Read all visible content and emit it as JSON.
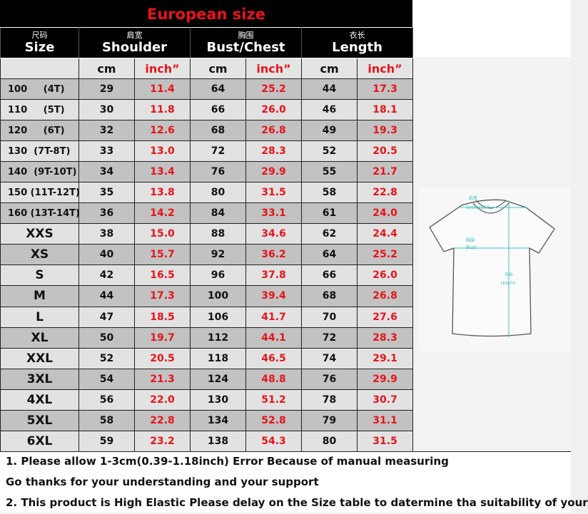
{
  "title": "European size",
  "headers": [
    {
      "cn": "尺码",
      "en": "Size"
    },
    {
      "cn": "肩宽",
      "en": "Shoulder"
    },
    {
      "cn": "胸围",
      "en": "Bust/Chest"
    },
    {
      "cn": "衣长",
      "en": "Length"
    }
  ],
  "units": {
    "cm": "cm",
    "inch": "inch”"
  },
  "rows": [
    {
      "size": "100     (4T)",
      "s_cm": "29",
      "s_in": "11.4",
      "b_cm": "64",
      "b_in": "25.2",
      "l_cm": "44",
      "l_in": "17.3"
    },
    {
      "size": "110     (5T)",
      "s_cm": "30",
      "s_in": "11.8",
      "b_cm": "66",
      "b_in": "26.0",
      "l_cm": "46",
      "l_in": "18.1"
    },
    {
      "size": "120     (6T)",
      "s_cm": "32",
      "s_in": "12.6",
      "b_cm": "68",
      "b_in": "26.8",
      "l_cm": "49",
      "l_in": "19.3"
    },
    {
      "size": "130  (7T-8T)",
      "s_cm": "33",
      "s_in": "13.0",
      "b_cm": "72",
      "b_in": "28.3",
      "l_cm": "52",
      "l_in": "20.5"
    },
    {
      "size": "140  (9T-10T)",
      "s_cm": "34",
      "s_in": "13.4",
      "b_cm": "76",
      "b_in": "29.9",
      "l_cm": "55",
      "l_in": "21.7"
    },
    {
      "size": "150 (11T-12T)",
      "s_cm": "35",
      "s_in": "13.8",
      "b_cm": "80",
      "b_in": "31.5",
      "l_cm": "58",
      "l_in": "22.8"
    },
    {
      "size": "160 (13T-14T)",
      "s_cm": "36",
      "s_in": "14.2",
      "b_cm": "84",
      "b_in": "33.1",
      "l_cm": "61",
      "l_in": "24.0"
    },
    {
      "size": "XXS",
      "s_cm": "38",
      "s_in": "15.0",
      "b_cm": "88",
      "b_in": "34.6",
      "l_cm": "62",
      "l_in": "24.4"
    },
    {
      "size": "XS",
      "s_cm": "40",
      "s_in": "15.7",
      "b_cm": "92",
      "b_in": "36.2",
      "l_cm": "64",
      "l_in": "25.2"
    },
    {
      "size": "S",
      "s_cm": "42",
      "s_in": "16.5",
      "b_cm": "96",
      "b_in": "37.8",
      "l_cm": "66",
      "l_in": "26.0"
    },
    {
      "size": "M",
      "s_cm": "44",
      "s_in": "17.3",
      "b_cm": "100",
      "b_in": "39.4",
      "l_cm": "68",
      "l_in": "26.8"
    },
    {
      "size": "L",
      "s_cm": "47",
      "s_in": "18.5",
      "b_cm": "106",
      "b_in": "41.7",
      "l_cm": "70",
      "l_in": "27.6"
    },
    {
      "size": "XL",
      "s_cm": "50",
      "s_in": "19.7",
      "b_cm": "112",
      "b_in": "44.1",
      "l_cm": "72",
      "l_in": "28.3"
    },
    {
      "size": "XXL",
      "s_cm": "52",
      "s_in": "20.5",
      "b_cm": "118",
      "b_in": "46.5",
      "l_cm": "74",
      "l_in": "29.1"
    },
    {
      "size": "3XL",
      "s_cm": "54",
      "s_in": "21.3",
      "b_cm": "124",
      "b_in": "48.8",
      "l_cm": "76",
      "l_in": "29.9"
    },
    {
      "size": "4XL",
      "s_cm": "56",
      "s_in": "22.0",
      "b_cm": "130",
      "b_in": "51.2",
      "l_cm": "78",
      "l_in": "30.7"
    },
    {
      "size": "5XL",
      "s_cm": "58",
      "s_in": "22.8",
      "b_cm": "134",
      "b_in": "52.8",
      "l_cm": "79",
      "l_in": "31.1"
    },
    {
      "size": "6XL",
      "s_cm": "59",
      "s_in": "23.2",
      "b_cm": "138",
      "b_in": "54.3",
      "l_cm": "80",
      "l_in": "31.5"
    }
  ],
  "diagram": {
    "shoulder_cn": "肩宽",
    "shoulder": "SHOULDER",
    "bust_cn": "胸围",
    "bust": "Bust",
    "length_cn": "衣长",
    "length": "LENGTH"
  },
  "notes": [
    "1. Please allow 1-3cm(0.39-1.18inch) Error Because of manual measuring",
    "Go thanks for your understanding and your support",
    "2. This product is High Elastic  Please delay on the Size table to datermine tha suitability of your"
  ],
  "colors": {
    "accent": "#e8141b",
    "header_bg": "#000000",
    "row_dark": "#c2c2c2",
    "row_light": "#e2e2e2",
    "diagram_line": "#3cc4c0"
  }
}
